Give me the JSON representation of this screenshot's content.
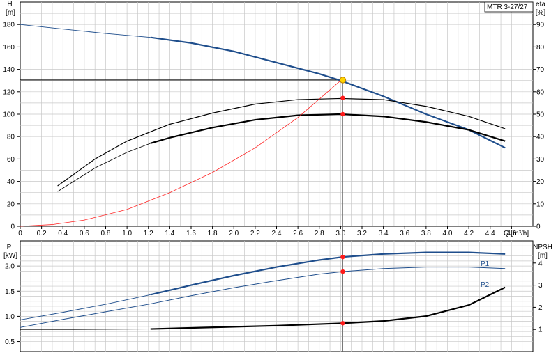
{
  "chart_data": [
    {
      "type": "line",
      "panel": "upper",
      "label_box": "MTR 3-27/27",
      "xlabel": "Q [m³/h]",
      "ylabel_left": [
        "H",
        "[m]"
      ],
      "ylabel_right": [
        "eta",
        "[%]"
      ],
      "x_range": [
        0,
        4.8
      ],
      "x_ticks": [
        "0",
        "0.2",
        "0.4",
        "0.6",
        "0.8",
        "1.0",
        "1.2",
        "1.4",
        "1.6",
        "1.8",
        "2.0",
        "2.2",
        "2.4",
        "2.6",
        "2.8",
        "3.0",
        "3.2",
        "3.4",
        "3.6",
        "3.8",
        "4.0",
        "4.2",
        "4.4",
        "4.6"
      ],
      "ylim_left": [
        0,
        200
      ],
      "y_ticks_left": [
        "0",
        "20",
        "40",
        "60",
        "80",
        "100",
        "120",
        "140",
        "160",
        "180"
      ],
      "ylim_right": [
        0,
        100
      ],
      "y_ticks_right": [
        "0",
        "10",
        "20",
        "30",
        "40",
        "50",
        "60",
        "70",
        "80",
        "90"
      ],
      "grid": true,
      "series": [
        {
          "axis": "left",
          "color": "#1f4e8c",
          "width": 1.2,
          "style": "thin-then-thick",
          "x": [
            0,
            0.4,
            0.8,
            1.22,
            1.6,
            2.0,
            2.4,
            2.8,
            3.0,
            3.4,
            3.8,
            4.2,
            4.54
          ],
          "y": [
            180,
            176,
            172,
            168.5,
            163.5,
            156,
            146,
            136,
            130,
            116,
            100,
            86,
            70
          ]
        },
        {
          "axis": "right",
          "color": "#000000",
          "width": 1.2,
          "x": [
            0.35,
            0.7,
            1.0,
            1.4,
            1.8,
            2.2,
            2.6,
            3.0,
            3.4,
            3.8,
            4.2,
            4.54
          ],
          "y": [
            18,
            30,
            38,
            45.5,
            50.5,
            54.5,
            56.5,
            57,
            56.5,
            53.5,
            49,
            43.5
          ]
        },
        {
          "axis": "right",
          "color": "#000000",
          "width": 1.2,
          "style": "thin-then-thick",
          "x": [
            0.35,
            0.7,
            1.0,
            1.22,
            1.4,
            1.8,
            2.2,
            2.6,
            3.0,
            3.4,
            3.8,
            4.2,
            4.54
          ],
          "y": [
            15.5,
            26,
            33,
            37,
            39.5,
            44,
            47.5,
            49.5,
            50,
            49,
            46.5,
            43,
            38
          ]
        },
        {
          "axis": "left",
          "color": "#ff2020",
          "width": 0.8,
          "x": [
            0,
            0.3,
            0.6,
            1.0,
            1.4,
            1.8,
            2.2,
            2.6,
            3.0
          ],
          "y": [
            0,
            1.5,
            5.5,
            15,
            30,
            48,
            70,
            97,
            130
          ]
        }
      ],
      "operating_point": {
        "x": 3.02,
        "y": 130.5
      },
      "markers": [
        {
          "x": 3.02,
          "y": 114.5
        },
        {
          "x": 3.02,
          "y": 100
        }
      ]
    },
    {
      "type": "line",
      "panel": "lower",
      "ylabel_left": [
        "P",
        "[kW]"
      ],
      "ylabel_right": [
        "NPSH",
        "[m]"
      ],
      "x_range": [
        0,
        4.8
      ],
      "ylim_left": [
        0.3,
        2.5
      ],
      "y_ticks_left": [
        "0.5",
        "1.0",
        "1.5",
        "2.0"
      ],
      "ylim_right": [
        0,
        5
      ],
      "y_ticks_right": [
        "1",
        "2",
        "3",
        "4"
      ],
      "grid": true,
      "series": [
        {
          "name": "P1",
          "axis": "left",
          "color": "#1f4e8c",
          "width": 1.2,
          "style": "thin-then-thick",
          "x": [
            0,
            0.4,
            0.8,
            1.22,
            1.6,
            2.0,
            2.4,
            2.8,
            3.02,
            3.4,
            3.8,
            4.2,
            4.54
          ],
          "y": [
            0.93,
            1.08,
            1.24,
            1.43,
            1.62,
            1.81,
            1.98,
            2.12,
            2.18,
            2.24,
            2.27,
            2.27,
            2.24
          ]
        },
        {
          "name": "P2",
          "axis": "left",
          "color": "#1f4e8c",
          "width": 1.0,
          "x": [
            0,
            0.4,
            0.8,
            1.2,
            1.6,
            2.0,
            2.4,
            2.8,
            3.02,
            3.4,
            3.8,
            4.2,
            4.54
          ],
          "y": [
            0.78,
            0.94,
            1.09,
            1.24,
            1.41,
            1.57,
            1.71,
            1.84,
            1.89,
            1.95,
            1.98,
            1.98,
            1.95
          ]
        },
        {
          "axis": "right",
          "color": "#000000",
          "width": 1.2,
          "style": "thin-then-thick",
          "x": [
            0,
            0.5,
            1.22,
            1.6,
            2.0,
            2.4,
            2.8,
            3.02,
            3.4,
            3.8,
            4.2,
            4.54
          ],
          "y": [
            1.0,
            1.0,
            1.02,
            1.07,
            1.12,
            1.17,
            1.24,
            1.28,
            1.38,
            1.6,
            2.1,
            2.9
          ]
        }
      ],
      "markers": [
        {
          "axis": "left",
          "x": 3.02,
          "y": 2.18
        },
        {
          "axis": "left",
          "x": 3.02,
          "y": 1.89
        },
        {
          "axis": "right",
          "x": 3.02,
          "y": 1.28
        }
      ]
    }
  ]
}
